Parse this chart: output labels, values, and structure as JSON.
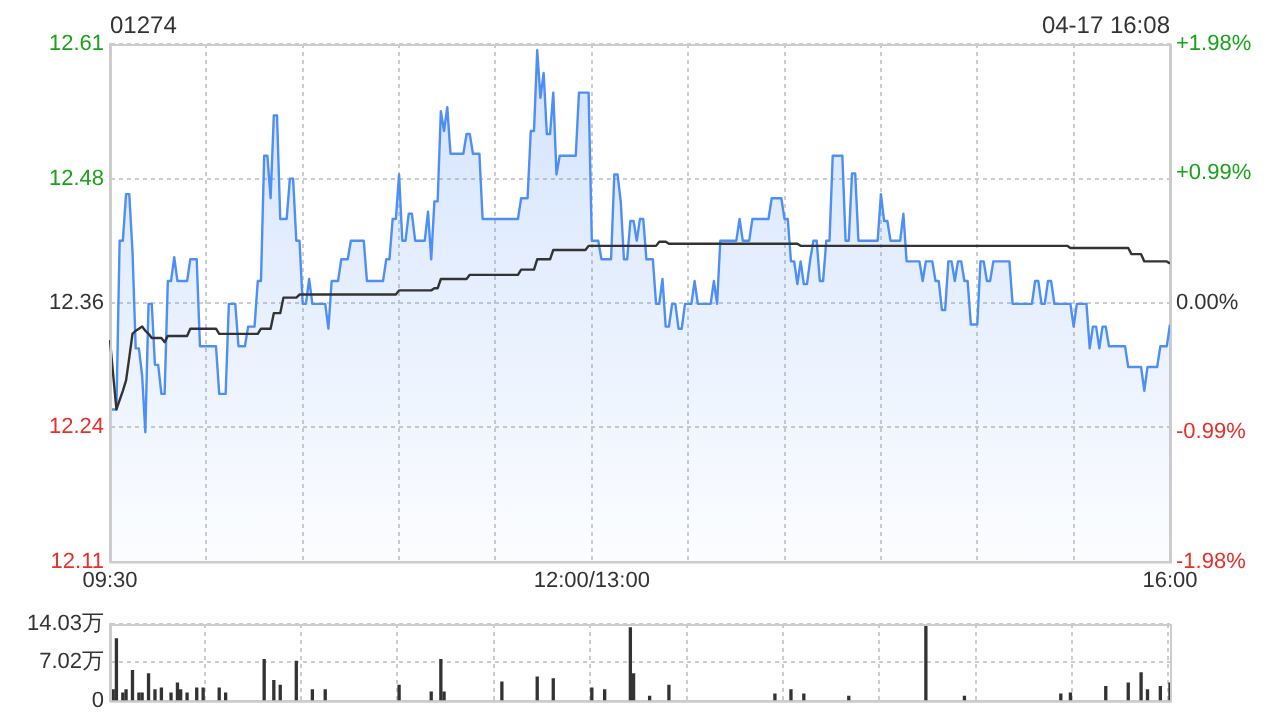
{
  "chart_data": [
    {
      "type": "area",
      "title": "01274",
      "annotations": [
        "04-17 16:08"
      ],
      "categories": [
        "09:30",
        null,
        null,
        null,
        null,
        null,
        null,
        null,
        null,
        null,
        null,
        null,
        null,
        null,
        null,
        null,
        null,
        null,
        null,
        null,
        null,
        null,
        null,
        null,
        null,
        null,
        null,
        null,
        null,
        null,
        null,
        null,
        null,
        null,
        null,
        null,
        null,
        null,
        null,
        null,
        null,
        null,
        null,
        null,
        null,
        null,
        null,
        null,
        null,
        null,
        null,
        null,
        null,
        null,
        null,
        null,
        null,
        null,
        null,
        null,
        null,
        null,
        null,
        null,
        null,
        null,
        null,
        null,
        null,
        null,
        null,
        null,
        null,
        null,
        null,
        null,
        null,
        null,
        null,
        null,
        null,
        null,
        null,
        null,
        null,
        null,
        null,
        null,
        null,
        null,
        null,
        null,
        null,
        null,
        null,
        null,
        null,
        null,
        null,
        null,
        null,
        null,
        null,
        null,
        null,
        null,
        null,
        null,
        null,
        null,
        null,
        null,
        null,
        null,
        null,
        null,
        null,
        null,
        null,
        null,
        null,
        null,
        null,
        null,
        null,
        null,
        null,
        null,
        null,
        null,
        null,
        null,
        null,
        null,
        null,
        null,
        null,
        null,
        null,
        null,
        null,
        null,
        null,
        null,
        null,
        null,
        null,
        null,
        null,
        null,
        "12:00/13:00",
        null,
        null,
        null,
        null,
        null,
        null,
        null,
        null,
        null,
        null,
        null,
        null,
        null,
        null,
        null,
        null,
        null,
        null,
        null,
        null,
        null,
        null,
        null,
        null,
        null,
        null,
        null,
        null,
        null,
        null,
        null,
        null,
        null,
        null,
        null,
        null,
        null,
        null,
        null,
        null,
        null,
        null,
        null,
        null,
        null,
        null,
        null,
        null,
        null,
        null,
        null,
        null,
        null,
        null,
        null,
        null,
        null,
        null,
        null,
        null,
        null,
        null,
        null,
        null,
        null,
        null,
        null,
        null,
        null,
        null,
        null,
        null,
        null,
        null,
        null,
        null,
        null,
        null,
        null,
        null,
        null,
        null,
        null,
        null,
        null,
        null,
        null,
        null,
        null,
        null,
        null,
        null,
        null,
        null,
        null,
        null,
        null,
        null,
        null,
        null,
        null,
        null,
        null,
        null,
        null,
        null,
        null,
        null,
        null,
        null,
        null,
        null,
        null,
        null,
        null,
        null,
        null,
        null,
        null,
        null,
        null,
        null,
        null,
        null,
        null,
        null,
        null,
        null,
        null,
        null,
        null,
        null,
        null,
        null,
        null,
        null,
        null,
        null,
        null,
        null,
        null,
        null,
        null,
        null,
        null,
        null,
        null,
        null,
        null,
        null,
        null,
        null,
        null,
        null,
        null,
        null,
        null,
        null,
        null,
        null,
        null,
        null,
        null,
        null,
        null,
        null,
        null,
        null,
        null,
        null,
        null,
        null,
        null,
        null,
        null,
        null,
        null,
        null,
        null,
        "16:00"
      ],
      "ylim": [
        12.11,
        12.61
      ],
      "yticks": [
        12.11,
        12.24,
        12.36,
        12.48,
        12.61
      ],
      "y2lim": [
        -1.98,
        1.98
      ],
      "y2ticks": [
        {
          "value": -1.98,
          "label": "-1.98%"
        },
        {
          "value": -0.99,
          "label": "-0.99%"
        },
        {
          "value": 0,
          "label": "0.00%"
        },
        {
          "value": 0.99,
          "label": "+0.99%"
        },
        {
          "value": 1.98,
          "label": "+1.98%"
        }
      ],
      "grid": true,
      "legend": false,
      "series": [
        {
          "color": "#4e8ef7",
          "values": [
            12.257,
            12.257,
            12.257,
            12.42,
            12.42,
            12.465,
            12.465,
            12.41,
            12.316,
            12.316,
            12.29,
            12.235,
            12.359,
            12.359,
            12.3,
            12.3,
            12.272,
            12.272,
            12.381,
            12.381,
            12.404,
            12.381,
            12.381,
            12.381,
            12.381,
            12.402,
            12.402,
            12.402,
            12.318,
            12.318,
            12.318,
            12.318,
            12.318,
            12.318,
            12.272,
            12.272,
            12.272,
            12.359,
            12.359,
            12.359,
            12.318,
            12.318,
            12.318,
            12.337,
            12.337,
            12.337,
            12.381,
            12.381,
            12.502,
            12.502,
            12.461,
            12.541,
            12.541,
            12.441,
            12.441,
            12.441,
            12.48,
            12.48,
            12.42,
            12.42,
            12.359,
            12.359,
            12.383,
            12.359,
            12.359,
            12.359,
            12.359,
            12.359,
            12.335,
            12.381,
            12.381,
            12.381,
            12.402,
            12.402,
            12.402,
            12.42,
            12.42,
            12.42,
            12.42,
            12.42,
            12.381,
            12.381,
            12.381,
            12.381,
            12.381,
            12.381,
            12.402,
            12.402,
            12.441,
            12.441,
            12.484,
            12.42,
            12.42,
            12.446,
            12.446,
            12.42,
            12.42,
            12.42,
            12.42,
            12.448,
            12.402,
            12.458,
            12.458,
            12.545,
            12.526,
            12.549,
            12.504,
            12.504,
            12.504,
            12.504,
            12.504,
            12.523,
            12.523,
            12.504,
            12.504,
            12.504,
            12.441,
            12.441,
            12.441,
            12.441,
            12.441,
            12.441,
            12.441,
            12.441,
            12.441,
            12.441,
            12.441,
            12.441,
            12.461,
            12.461,
            12.461,
            12.526,
            12.526,
            12.604,
            12.558,
            12.582,
            12.523,
            12.523,
            12.563,
            12.484,
            12.502,
            12.502,
            12.502,
            12.502,
            12.502,
            12.502,
            12.563,
            12.563,
            12.563,
            12.563,
            12.42,
            12.42,
            12.42,
            12.402,
            12.402,
            12.402,
            12.402,
            12.484,
            12.484,
            12.458,
            12.402,
            12.402,
            12.439,
            12.439,
            12.42,
            12.441,
            12.441,
            12.402,
            12.402,
            12.402,
            12.359,
            12.359,
            12.383,
            12.337,
            12.337,
            12.359,
            12.359,
            12.335,
            12.335,
            12.359,
            12.359,
            12.359,
            12.381,
            12.359,
            12.359,
            12.359,
            12.359,
            12.359,
            12.381,
            12.359,
            12.42,
            12.42,
            12.42,
            12.42,
            12.42,
            12.42,
            12.441,
            12.42,
            12.42,
            12.42,
            12.441,
            12.441,
            12.441,
            12.441,
            12.441,
            12.441,
            12.461,
            12.461,
            12.461,
            12.461,
            12.441,
            12.441,
            12.4,
            12.4,
            12.378,
            12.4,
            12.378,
            12.378,
            12.402,
            12.42,
            12.42,
            12.381,
            12.381,
            12.42,
            12.42,
            12.502,
            12.502,
            12.502,
            12.502,
            12.42,
            12.42,
            12.485,
            12.485,
            12.42,
            12.42,
            12.42,
            12.42,
            12.42,
            12.42,
            12.42,
            12.465,
            12.439,
            12.439,
            12.42,
            12.42,
            12.42,
            12.42,
            12.446,
            12.4,
            12.4,
            12.4,
            12.4,
            12.4,
            12.381,
            12.4,
            12.4,
            12.4,
            12.381,
            12.381,
            12.353,
            12.353,
            12.4,
            12.4,
            12.381,
            12.4,
            12.4,
            12.381,
            12.381,
            12.339,
            12.339,
            12.339,
            12.4,
            12.4,
            12.381,
            12.381,
            12.4,
            12.4,
            12.4,
            12.4,
            12.4,
            12.4,
            12.359,
            12.359,
            12.359,
            12.359,
            12.359,
            12.359,
            12.359,
            12.381,
            12.381,
            12.359,
            12.359,
            12.381,
            12.381,
            12.359,
            12.359,
            12.359,
            12.359,
            12.359,
            12.359,
            12.337,
            12.359,
            12.359,
            12.359,
            12.359,
            12.316,
            12.337,
            12.337,
            12.316,
            12.337,
            12.337,
            12.318,
            12.318,
            12.318,
            12.318,
            12.318,
            12.318,
            12.298,
            12.298,
            12.298,
            12.298,
            12.298,
            12.275,
            12.298,
            12.298,
            12.298,
            12.298,
            12.318,
            12.318,
            12.318,
            12.339
          ]
        },
        {
          "type": "line",
          "color": "#333333",
          "values": [
            12.324,
            12.29,
            12.257,
            12.266,
            12.275,
            12.285,
            12.307,
            12.33,
            12.333,
            12.335,
            12.337,
            12.333,
            12.33,
            12.326,
            12.326,
            12.326,
            12.326,
            12.322,
            12.328,
            12.328,
            12.328,
            12.328,
            12.328,
            12.328,
            12.328,
            12.335,
            12.335,
            12.335,
            12.335,
            12.335,
            12.335,
            12.335,
            12.335,
            12.335,
            12.33,
            12.33,
            12.33,
            12.33,
            12.33,
            12.33,
            12.33,
            12.33,
            12.33,
            12.33,
            12.33,
            12.33,
            12.33,
            12.335,
            12.335,
            12.335,
            12.335,
            12.35,
            12.35,
            12.35,
            12.365,
            12.365,
            12.365,
            12.365,
            12.365,
            12.368,
            12.368,
            12.368,
            12.368,
            12.368,
            12.368,
            12.368,
            12.368,
            12.368,
            12.368,
            12.368,
            12.368,
            12.368,
            12.368,
            12.368,
            12.368,
            12.368,
            12.368,
            12.368,
            12.368,
            12.368,
            12.368,
            12.368,
            12.368,
            12.368,
            12.368,
            12.368,
            12.368,
            12.368,
            12.368,
            12.368,
            12.372,
            12.372,
            12.372,
            12.372,
            12.372,
            12.372,
            12.372,
            12.372,
            12.372,
            12.372,
            12.372,
            12.374,
            12.374,
            12.383,
            12.383,
            12.383,
            12.383,
            12.383,
            12.383,
            12.383,
            12.383,
            12.383,
            12.387,
            12.387,
            12.387,
            12.387,
            12.387,
            12.387,
            12.387,
            12.387,
            12.387,
            12.387,
            12.387,
            12.387,
            12.387,
            12.387,
            12.387,
            12.387,
            12.392,
            12.392,
            12.392,
            12.392,
            12.392,
            12.402,
            12.402,
            12.402,
            12.402,
            12.402,
            12.411,
            12.411,
            12.411,
            12.411,
            12.411,
            12.411,
            12.411,
            12.411,
            12.411,
            12.411,
            12.411,
            12.415,
            12.415,
            12.415,
            12.415,
            12.415,
            12.415,
            12.415,
            12.415,
            12.415,
            12.415,
            12.415,
            12.415,
            12.415,
            12.415,
            12.415,
            12.415,
            12.415,
            12.415,
            12.415,
            12.415,
            12.415,
            12.415,
            12.419,
            12.419,
            12.419,
            12.417,
            12.417,
            12.417,
            12.417,
            12.417,
            12.417,
            12.417,
            12.417,
            12.417,
            12.417,
            12.417,
            12.417,
            12.417,
            12.417,
            12.417,
            12.417,
            12.417,
            12.417,
            12.417,
            12.417,
            12.417,
            12.417,
            12.417,
            12.417,
            12.417,
            12.417,
            12.417,
            12.417,
            12.417,
            12.417,
            12.417,
            12.417,
            12.417,
            12.417,
            12.417,
            12.417,
            12.417,
            12.417,
            12.417,
            12.417,
            12.417,
            12.415,
            12.415,
            12.415,
            12.415,
            12.415,
            12.415,
            12.415,
            12.415,
            12.415,
            12.415,
            12.415,
            12.415,
            12.415,
            12.415,
            12.415,
            12.415,
            12.415,
            12.415,
            12.415,
            12.415,
            12.415,
            12.415,
            12.415,
            12.415,
            12.415,
            12.415,
            12.415,
            12.415,
            12.415,
            12.415,
            12.415,
            12.415,
            12.415,
            12.415,
            12.415,
            12.415,
            12.415,
            12.415,
            12.415,
            12.415,
            12.415,
            12.415,
            12.415,
            12.415,
            12.415,
            12.415,
            12.415,
            12.415,
            12.415,
            12.415,
            12.415,
            12.415,
            12.415,
            12.415,
            12.415,
            12.415,
            12.415,
            12.415,
            12.415,
            12.415,
            12.415,
            12.415,
            12.415,
            12.415,
            12.415,
            12.415,
            12.415,
            12.415,
            12.415,
            12.415,
            12.415,
            12.415,
            12.415,
            12.415,
            12.415,
            12.415,
            12.415,
            12.415,
            12.415,
            12.415,
            12.415,
            12.415,
            12.415,
            12.415,
            12.413,
            12.413,
            12.413,
            12.413,
            12.413,
            12.413,
            12.413,
            12.413,
            12.413,
            12.413,
            12.413,
            12.413,
            12.413,
            12.413,
            12.413,
            12.413,
            12.413,
            12.413,
            12.413,
            12.407,
            12.407,
            12.407,
            12.407,
            12.4,
            12.4,
            12.4,
            12.4,
            12.4,
            12.4,
            12.4,
            12.4,
            12.398
          ]
        }
      ]
    },
    {
      "type": "bar",
      "categories": [
        null,
        null,
        null,
        null,
        null,
        null,
        null,
        null,
        null,
        null,
        null,
        null,
        null,
        null,
        null,
        null,
        null,
        null,
        null,
        null,
        null,
        null,
        null,
        null,
        null,
        null,
        null,
        null,
        null,
        null,
        null,
        null,
        null,
        null,
        null,
        null,
        null,
        null,
        null,
        null,
        null,
        null,
        null,
        null,
        null,
        null,
        null,
        null,
        null,
        null,
        null,
        null,
        null,
        null,
        null,
        null,
        null,
        null,
        null,
        null,
        null,
        null,
        null,
        null,
        null,
        null,
        null,
        null,
        null,
        null,
        null,
        null,
        null,
        null,
        null,
        null,
        null,
        null,
        null,
        null,
        null,
        null,
        null,
        null,
        null,
        null,
        null,
        null,
        null,
        null,
        null,
        null,
        null,
        null,
        null,
        null,
        null,
        null,
        null,
        null,
        null,
        null,
        null,
        null,
        null,
        null,
        null,
        null,
        null,
        null,
        null,
        null,
        null,
        null,
        null,
        null,
        null,
        null,
        null,
        null,
        null,
        null,
        null,
        null,
        null,
        null,
        null,
        null,
        null,
        null,
        null,
        null,
        null,
        null,
        null,
        null,
        null,
        null,
        null,
        null,
        null,
        null,
        null,
        null,
        null,
        null,
        null,
        null,
        null,
        null,
        null,
        null,
        null,
        null,
        null,
        null,
        null,
        null,
        null,
        null,
        null,
        null,
        null,
        null,
        null,
        null,
        null,
        null,
        null,
        null,
        null,
        null,
        null,
        null,
        null,
        null,
        null,
        null,
        null,
        null,
        null,
        null,
        null,
        null,
        null,
        null,
        null,
        null,
        null,
        null,
        null,
        null,
        null,
        null,
        null,
        null,
        null,
        null,
        null,
        null,
        null,
        null,
        null,
        null,
        null,
        null,
        null,
        null,
        null,
        null,
        null,
        null,
        null,
        null,
        null,
        null,
        null,
        null,
        null,
        null,
        null,
        null,
        null,
        null,
        null,
        null,
        null,
        null,
        null,
        null,
        null,
        null,
        null,
        null,
        null,
        null,
        null,
        null,
        null,
        null,
        null,
        null,
        null,
        null,
        null,
        null,
        null,
        null,
        null,
        null,
        null,
        null,
        null,
        null,
        null,
        null,
        null,
        null,
        null,
        null,
        null,
        null,
        null,
        null,
        null,
        null,
        null,
        null,
        null,
        null,
        null,
        null,
        null,
        null,
        null,
        null,
        null,
        null,
        null,
        null,
        null,
        null,
        null,
        null,
        null,
        null,
        null,
        null,
        null,
        null,
        null,
        null,
        null,
        null,
        null,
        null,
        null,
        null,
        null,
        null,
        null,
        null,
        null,
        null,
        null,
        null,
        null,
        null,
        null,
        null,
        null,
        null,
        null,
        null,
        null,
        null,
        null,
        null,
        null,
        null,
        null,
        null,
        null,
        null,
        null,
        null,
        null,
        null,
        null,
        null,
        null
      ],
      "ylim": [
        0,
        14.03
      ],
      "yticks": [
        0,
        {
          "value": 7.02,
          "label": "7.02万"
        },
        {
          "value": 14.03,
          "label": "14.03万"
        }
      ],
      "grid": true,
      "legend": false,
      "tick_labels": "y",
      "color": "#333333",
      "values": [
        null,
        2,
        11.3,
        null,
        1.4,
        2,
        null,
        5.5,
        null,
        1.4,
        1.4,
        null,
        4.9,
        null,
        2,
        null,
        2.3,
        null,
        null,
        1.4,
        null,
        3.2,
        2,
        null,
        1.4,
        null,
        null,
        2.3,
        null,
        2.3,
        null,
        null,
        null,
        null,
        2.3,
        null,
        1.4,
        null,
        null,
        null,
        null,
        null,
        null,
        null,
        null,
        null,
        null,
        null,
        7.5,
        null,
        null,
        3.7,
        null,
        2.8,
        null,
        null,
        null,
        null,
        7.2,
        null,
        null,
        null,
        null,
        2,
        null,
        null,
        null,
        2,
        null,
        null,
        null,
        null,
        null,
        null,
        null,
        null,
        null,
        null,
        null,
        null,
        null,
        null,
        null,
        null,
        null,
        null,
        null,
        null,
        null,
        null,
        2.8,
        null,
        null,
        null,
        null,
        null,
        null,
        null,
        null,
        null,
        1.6,
        null,
        null,
        7.5,
        1.6,
        null,
        null,
        null,
        null,
        null,
        null,
        null,
        null,
        null,
        null,
        null,
        null,
        null,
        null,
        null,
        null,
        null,
        3.4,
        null,
        null,
        null,
        null,
        null,
        null,
        null,
        null,
        null,
        null,
        4.3,
        null,
        null,
        null,
        null,
        4,
        null,
        null,
        null,
        null,
        null,
        null,
        null,
        null,
        null,
        null,
        null,
        2.3,
        null,
        null,
        null,
        2,
        null,
        null,
        null,
        null,
        null,
        null,
        null,
        13.3,
        4.9,
        null,
        null,
        null,
        null,
        0.8,
        null,
        null,
        null,
        null,
        null,
        2.8,
        null,
        null,
        null,
        null,
        null,
        null,
        null,
        null,
        null,
        null,
        null,
        null,
        null,
        null,
        null,
        null,
        null,
        null,
        null,
        null,
        null,
        null,
        null,
        null,
        null,
        null,
        null,
        null,
        null,
        null,
        null,
        null,
        1.2,
        null,
        null,
        null,
        null,
        2,
        null,
        null,
        null,
        1.2,
        null,
        null,
        null,
        null,
        null,
        null,
        null,
        null,
        null,
        null,
        null,
        null,
        null,
        0.8,
        null,
        null,
        null,
        null,
        null,
        null,
        null,
        null,
        null,
        null,
        null,
        null,
        null,
        null,
        null,
        null,
        null,
        null,
        null,
        null,
        null,
        null,
        null,
        14,
        null,
        null,
        null,
        null,
        null,
        null,
        null,
        null,
        null,
        null,
        null,
        0.8,
        null,
        null,
        null,
        null,
        null,
        null,
        null,
        null,
        null,
        null,
        null,
        null,
        null,
        null,
        null,
        null,
        null,
        null,
        null,
        null,
        null,
        null,
        null,
        null,
        null,
        null,
        null,
        null,
        null,
        1.2,
        null,
        null,
        1.4,
        null,
        null,
        null,
        null,
        null,
        null,
        null,
        null,
        null,
        null,
        2.6,
        null,
        null,
        null,
        null,
        null,
        null,
        3.2,
        null,
        null,
        null,
        5.1,
        null,
        2,
        null,
        null,
        null,
        2.6,
        null,
        null,
        3.2
      ]
    }
  ]
}
